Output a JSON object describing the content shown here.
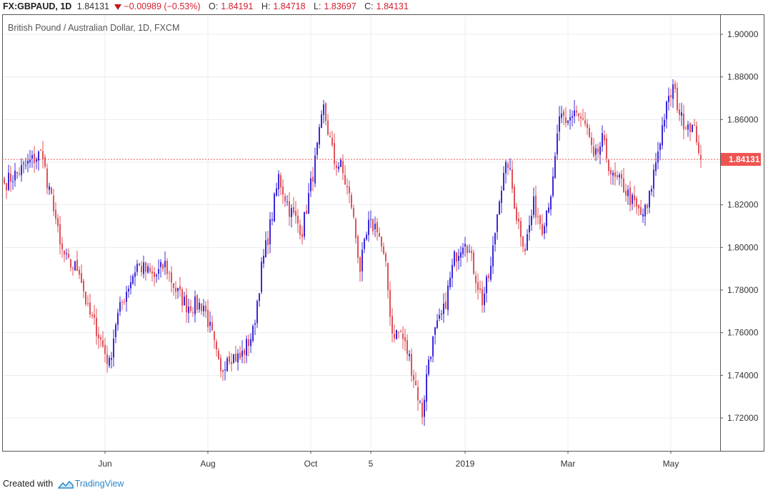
{
  "header": {
    "symbol": "FX:GBPAUD, 1D",
    "last": "1.84131",
    "change": "−0.00989 (−0.53%)",
    "open_label": "O:",
    "open": "1.84191",
    "high_label": "H:",
    "high": "1.84718",
    "low_label": "L:",
    "low": "1.83697",
    "close_label": "C:",
    "close": "1.84131"
  },
  "footer": {
    "created_with": "Created with",
    "brand": "TradingView"
  },
  "colors": {
    "up": "#3a29d9",
    "down": "#e0525a",
    "grid": "#e8eef3",
    "axis": "#333333",
    "price_tag": "#ef5350"
  },
  "chart_data": {
    "type": "candlestick",
    "title": "British Pound / Australian Dollar, 1D, FXCM",
    "y_range": [
      1.7,
      1.91
    ],
    "y_ticks": [
      "1.90000",
      "1.88000",
      "1.86000",
      "1.84000",
      "1.82000",
      "1.80000",
      "1.78000",
      "1.76000",
      "1.74000",
      "1.72000"
    ],
    "y_tick_values": [
      1.9,
      1.88,
      1.86,
      1.84,
      1.82,
      1.8,
      1.78,
      1.76,
      1.74,
      1.72
    ],
    "x_ticks": [
      "Jun",
      "Aug",
      "Oct",
      "5",
      "2019",
      "Mar",
      "May"
    ],
    "x_tick_bar_index": [
      47,
      95,
      143,
      171,
      215,
      263,
      311
    ],
    "last_price_label": "1.84131",
    "last_price": 1.84131,
    "anchors": [
      [
        0,
        1.83
      ],
      [
        6,
        1.835
      ],
      [
        12,
        1.84
      ],
      [
        18,
        1.845
      ],
      [
        20,
        1.828
      ],
      [
        23,
        1.82
      ],
      [
        26,
        1.8
      ],
      [
        30,
        1.792
      ],
      [
        35,
        1.79
      ],
      [
        39,
        1.77
      ],
      [
        43,
        1.762
      ],
      [
        49,
        1.745
      ],
      [
        52,
        1.765
      ],
      [
        57,
        1.78
      ],
      [
        62,
        1.792
      ],
      [
        70,
        1.786
      ],
      [
        75,
        1.792
      ],
      [
        80,
        1.78
      ],
      [
        85,
        1.773
      ],
      [
        93,
        1.773
      ],
      [
        97,
        1.758
      ],
      [
        101,
        1.74
      ],
      [
        104,
        1.75
      ],
      [
        110,
        1.748
      ],
      [
        116,
        1.76
      ],
      [
        120,
        1.79
      ],
      [
        124,
        1.81
      ],
      [
        128,
        1.833
      ],
      [
        133,
        1.818
      ],
      [
        139,
        1.808
      ],
      [
        145,
        1.84
      ],
      [
        149,
        1.865
      ],
      [
        154,
        1.84
      ],
      [
        157,
        1.838
      ],
      [
        162,
        1.82
      ],
      [
        166,
        1.79
      ],
      [
        170,
        1.81
      ],
      [
        174,
        1.81
      ],
      [
        178,
        1.79
      ],
      [
        181,
        1.76
      ],
      [
        185,
        1.76
      ],
      [
        189,
        1.748
      ],
      [
        192,
        1.735
      ],
      [
        195,
        1.722
      ],
      [
        198,
        1.748
      ],
      [
        201,
        1.76
      ],
      [
        205,
        1.77
      ],
      [
        210,
        1.795
      ],
      [
        215,
        1.805
      ],
      [
        219,
        1.79
      ],
      [
        223,
        1.775
      ],
      [
        227,
        1.79
      ],
      [
        231,
        1.825
      ],
      [
        235,
        1.84
      ],
      [
        239,
        1.815
      ],
      [
        243,
        1.8
      ],
      [
        247,
        1.82
      ],
      [
        251,
        1.81
      ],
      [
        256,
        1.83
      ],
      [
        259,
        1.862
      ],
      [
        262,
        1.856
      ],
      [
        266,
        1.865
      ],
      [
        272,
        1.855
      ],
      [
        275,
        1.84
      ],
      [
        279,
        1.85
      ],
      [
        284,
        1.832
      ],
      [
        288,
        1.83
      ],
      [
        292,
        1.823
      ],
      [
        297,
        1.815
      ],
      [
        300,
        1.818
      ],
      [
        303,
        1.835
      ],
      [
        308,
        1.862
      ],
      [
        312,
        1.875
      ],
      [
        316,
        1.86
      ],
      [
        320,
        1.858
      ],
      [
        323,
        1.852
      ],
      [
        325,
        1.8413
      ]
    ]
  }
}
